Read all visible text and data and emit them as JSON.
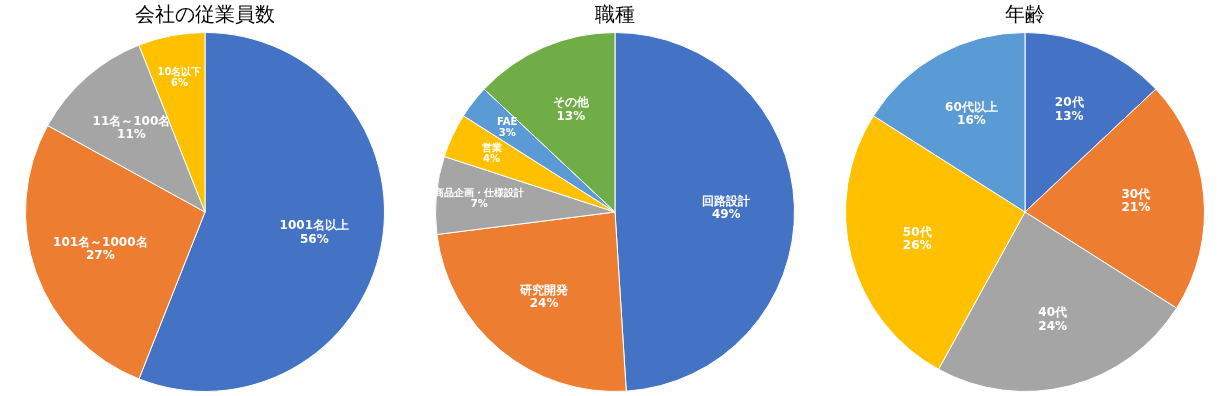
{
  "chart_data": [
    {
      "type": "pie",
      "title": "会社の従業員数",
      "categories": [
        "1001名以上",
        "101名～1000名",
        "11名～100名",
        "10名以下"
      ],
      "values": [
        56,
        27,
        11,
        6
      ],
      "value_labels": [
        "56%",
        "27%",
        "11%",
        "6%"
      ],
      "colors": [
        "#4472c4",
        "#ed7d31",
        "#a5a5a5",
        "#ffc000"
      ],
      "legend": false
    },
    {
      "type": "pie",
      "title": "職種",
      "categories": [
        "回路設計",
        "研究開発",
        "商品企画・仕様設計",
        "営業",
        "FAE",
        "その他"
      ],
      "values": [
        49,
        24,
        7,
        4,
        3,
        13
      ],
      "value_labels": [
        "49%",
        "24%",
        "7%",
        "4%",
        "3%",
        "13%"
      ],
      "colors": [
        "#4472c4",
        "#ed7d31",
        "#a5a5a5",
        "#ffc000",
        "#5b9bd5",
        "#70ad47"
      ],
      "legend": false
    },
    {
      "type": "pie",
      "title": "年齢",
      "categories": [
        "20代",
        "30代",
        "40代",
        "50代",
        "60代以上"
      ],
      "values": [
        13,
        21,
        24,
        26,
        16
      ],
      "value_labels": [
        "13%",
        "21%",
        "24%",
        "26%",
        "16%"
      ],
      "colors": [
        "#4472c4",
        "#ed7d31",
        "#a5a5a5",
        "#ffc000",
        "#5b9bd5"
      ],
      "legend": false
    }
  ]
}
